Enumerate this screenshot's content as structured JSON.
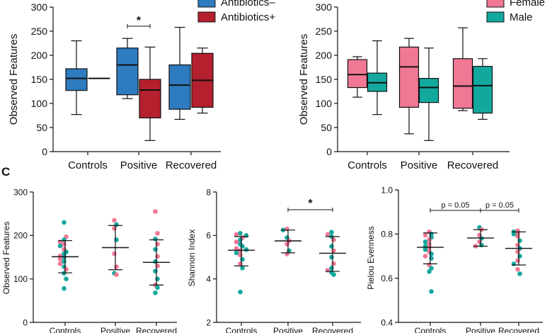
{
  "colors": {
    "antibiotics_minus": "#2e7bbf",
    "antibiotics_plus": "#b5202e",
    "female": "#f07895",
    "male": "#13a89e",
    "axis": "#111111"
  },
  "panel_label_c": "C",
  "chart_data": [
    {
      "type": "box",
      "ylabel": "Observed Features",
      "ylim": [
        0,
        300
      ],
      "yticks": [
        "0",
        "50",
        "100",
        "150",
        "200",
        "250",
        "300"
      ],
      "categories": [
        "Controls",
        "Positive",
        "Recovered"
      ],
      "legend": [
        {
          "label": "Antibiotics–",
          "color": "#2e7bbf",
          "partial": true
        },
        {
          "label": "Antibiotics+",
          "color": "#b5202e"
        }
      ],
      "series": [
        {
          "name": "Antibiotics–",
          "boxes": [
            {
              "min": 77,
              "q1": 127,
              "median": 152,
              "q3": 172,
              "max": 230
            },
            {
              "min": 110,
              "q1": 118,
              "median": 180,
              "q3": 215,
              "max": 235
            },
            {
              "min": 67,
              "q1": 88,
              "median": 138,
              "q3": 180,
              "max": 258
            }
          ]
        },
        {
          "name": "Antibiotics+",
          "boxes": [
            {
              "min": 152,
              "q1": 152,
              "median": 152,
              "q3": 152,
              "max": 152
            },
            {
              "min": 23,
              "q1": 70,
              "median": 128,
              "q3": 150,
              "max": 217
            },
            {
              "min": 80,
              "q1": 92,
              "median": 148,
              "q3": 204,
              "max": 215
            }
          ]
        }
      ],
      "annotations": [
        {
          "text": "*",
          "between": [
            1,
            1
          ]
        }
      ]
    },
    {
      "type": "box",
      "ylabel": "Observed Features",
      "ylim": [
        0,
        300
      ],
      "yticks": [
        "0",
        "50",
        "100",
        "150",
        "200",
        "250",
        "300"
      ],
      "categories": [
        "Controls",
        "Positive",
        "Recovered"
      ],
      "legend": [
        {
          "label": "Female",
          "color": "#f07895",
          "partial": true
        },
        {
          "label": "Male",
          "color": "#13a89e"
        }
      ],
      "series": [
        {
          "name": "Female",
          "boxes": [
            {
              "min": 113,
              "q1": 133,
              "median": 160,
              "q3": 191,
              "max": 197
            },
            {
              "min": 37,
              "q1": 92,
              "median": 176,
              "q3": 217,
              "max": 235
            },
            {
              "min": 85,
              "q1": 90,
              "median": 136,
              "q3": 193,
              "max": 257
            }
          ]
        },
        {
          "name": "Male",
          "boxes": [
            {
              "min": 77,
              "q1": 125,
              "median": 143,
              "q3": 163,
              "max": 230
            },
            {
              "min": 23,
              "q1": 102,
              "median": 133,
              "q3": 152,
              "max": 215
            },
            {
              "min": 67,
              "q1": 80,
              "median": 137,
              "q3": 177,
              "max": 193
            }
          ]
        }
      ]
    },
    {
      "type": "scatter",
      "ylabel": "Observed Features",
      "ylim": [
        0,
        300
      ],
      "yticks": [
        "0",
        "100",
        "200",
        "300"
      ],
      "categories": [
        "Controls",
        "Positive",
        "Recovered"
      ],
      "summary": [
        {
          "mean": 151,
          "low": 114,
          "high": 188
        },
        {
          "mean": 172,
          "low": 121,
          "high": 223
        },
        {
          "mean": 138,
          "low": 86,
          "high": 190
        }
      ],
      "points": [
        [
          [
            230,
            "m"
          ],
          [
            197,
            "f"
          ],
          [
            190,
            "m"
          ],
          [
            185,
            "f"
          ],
          [
            180,
            "f"
          ],
          [
            176,
            "m"
          ],
          [
            168,
            "f"
          ],
          [
            162,
            "m"
          ],
          [
            158,
            "m"
          ],
          [
            153,
            "f"
          ],
          [
            150,
            "m"
          ],
          [
            146,
            "f"
          ],
          [
            140,
            "m"
          ],
          [
            135,
            "f"
          ],
          [
            128,
            "m"
          ],
          [
            122,
            "f"
          ],
          [
            113,
            "m"
          ],
          [
            100,
            "m"
          ],
          [
            78,
            "m"
          ]
        ],
        [
          [
            235,
            "f"
          ],
          [
            225,
            "m"
          ],
          [
            216,
            "f"
          ],
          [
            190,
            "m"
          ],
          [
            158,
            "f"
          ],
          [
            128,
            "f"
          ],
          [
            113,
            "m"
          ],
          [
            110,
            "f"
          ]
        ],
        [
          [
            255,
            "f"
          ],
          [
            205,
            "f"
          ],
          [
            192,
            "m"
          ],
          [
            180,
            "f"
          ],
          [
            168,
            "m"
          ],
          [
            152,
            "f"
          ],
          [
            140,
            "m"
          ],
          [
            130,
            "f"
          ],
          [
            118,
            "m"
          ],
          [
            100,
            "m"
          ],
          [
            86,
            "f"
          ],
          [
            80,
            "m"
          ],
          [
            68,
            "m"
          ]
        ]
      ]
    },
    {
      "type": "scatter",
      "ylabel": "Shannon Index",
      "ylim": [
        2,
        8
      ],
      "yticks": [
        "2",
        "4",
        "6",
        "8"
      ],
      "categories": [
        "Controls",
        "Positive",
        "Recovered"
      ],
      "summary": [
        {
          "mean": 5.32,
          "low": 4.6,
          "high": 5.95
        },
        {
          "mean": 5.75,
          "low": 5.2,
          "high": 6.25
        },
        {
          "mean": 5.18,
          "low": 4.35,
          "high": 5.95
        }
      ],
      "points": [
        [
          [
            6.1,
            "m"
          ],
          [
            6.05,
            "f"
          ],
          [
            6.0,
            "m"
          ],
          [
            5.9,
            "f"
          ],
          [
            5.8,
            "m"
          ],
          [
            5.7,
            "f"
          ],
          [
            5.6,
            "m"
          ],
          [
            5.5,
            "m"
          ],
          [
            5.4,
            "f"
          ],
          [
            5.35,
            "m"
          ],
          [
            5.3,
            "f"
          ],
          [
            5.2,
            "m"
          ],
          [
            5.1,
            "f"
          ],
          [
            4.9,
            "m"
          ],
          [
            4.7,
            "f"
          ],
          [
            4.5,
            "m"
          ],
          [
            3.4,
            "m"
          ]
        ],
        [
          [
            6.3,
            "f"
          ],
          [
            6.25,
            "m"
          ],
          [
            5.9,
            "m"
          ],
          [
            5.75,
            "f"
          ],
          [
            5.6,
            "f"
          ],
          [
            5.3,
            "m"
          ],
          [
            5.15,
            "f"
          ]
        ],
        [
          [
            6.15,
            "m"
          ],
          [
            6.05,
            "f"
          ],
          [
            5.95,
            "m"
          ],
          [
            5.8,
            "f"
          ],
          [
            5.5,
            "m"
          ],
          [
            5.3,
            "f"
          ],
          [
            5.0,
            "m"
          ],
          [
            4.7,
            "f"
          ],
          [
            4.5,
            "m"
          ],
          [
            4.4,
            "f"
          ],
          [
            4.3,
            "m"
          ],
          [
            4.2,
            "m"
          ]
        ]
      ],
      "annotations": [
        {
          "text": "*",
          "between": [
            1,
            2
          ]
        }
      ]
    },
    {
      "type": "scatter",
      "ylabel": "Pielou Evenness",
      "ylim": [
        0.4,
        1.0
      ],
      "yticks": [
        "0.4",
        "0.6",
        "0.8",
        "1.0"
      ],
      "categories": [
        "Controls",
        "Positive",
        "Recovered"
      ],
      "summary": [
        {
          "mean": 0.74,
          "low": 0.665,
          "high": 0.805
        },
        {
          "mean": 0.782,
          "low": 0.745,
          "high": 0.82
        },
        {
          "mean": 0.735,
          "low": 0.66,
          "high": 0.81
        }
      ],
      "points": [
        [
          [
            0.81,
            "f"
          ],
          [
            0.8,
            "m"
          ],
          [
            0.795,
            "f"
          ],
          [
            0.785,
            "m"
          ],
          [
            0.775,
            "f"
          ],
          [
            0.765,
            "m"
          ],
          [
            0.755,
            "f"
          ],
          [
            0.745,
            "m"
          ],
          [
            0.74,
            "f"
          ],
          [
            0.73,
            "m"
          ],
          [
            0.72,
            "f"
          ],
          [
            0.71,
            "m"
          ],
          [
            0.7,
            "f"
          ],
          [
            0.69,
            "m"
          ],
          [
            0.66,
            "f"
          ],
          [
            0.645,
            "m"
          ],
          [
            0.63,
            "m"
          ],
          [
            0.54,
            "m"
          ]
        ],
        [
          [
            0.83,
            "m"
          ],
          [
            0.82,
            "f"
          ],
          [
            0.795,
            "f"
          ],
          [
            0.78,
            "m"
          ],
          [
            0.765,
            "f"
          ],
          [
            0.75,
            "m"
          ],
          [
            0.745,
            "f"
          ]
        ],
        [
          [
            0.815,
            "f"
          ],
          [
            0.81,
            "m"
          ],
          [
            0.805,
            "f"
          ],
          [
            0.8,
            "m"
          ],
          [
            0.79,
            "f"
          ],
          [
            0.77,
            "m"
          ],
          [
            0.75,
            "f"
          ],
          [
            0.735,
            "m"
          ],
          [
            0.72,
            "f"
          ],
          [
            0.7,
            "m"
          ],
          [
            0.68,
            "f"
          ],
          [
            0.665,
            "m"
          ],
          [
            0.64,
            "f"
          ],
          [
            0.62,
            "m"
          ]
        ]
      ],
      "annotations": [
        {
          "text": "p = 0.05",
          "between": [
            0,
            1
          ]
        },
        {
          "text": "p = 0.05",
          "between": [
            1,
            2
          ]
        }
      ]
    }
  ]
}
